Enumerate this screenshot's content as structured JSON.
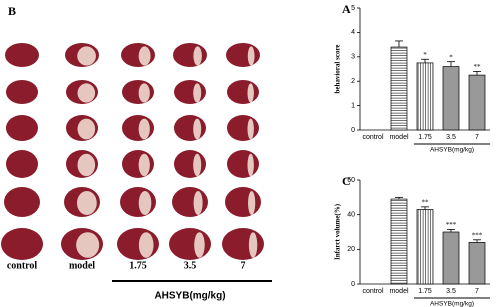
{
  "panel_b": {
    "panel_label": "B",
    "columns": [
      "control",
      "model",
      "1.75",
      "3.5",
      "7"
    ],
    "group_label": "AHSYB(mg/kg)"
  },
  "chart_data": [
    {
      "type": "bar",
      "panel_label": "A",
      "y_label": "behavioral score",
      "categories": [
        "control",
        "model",
        "1.75",
        "3.5",
        "7"
      ],
      "values": [
        0,
        3.4,
        2.75,
        2.6,
        2.25
      ],
      "errors": [
        0,
        0.25,
        0.15,
        0.2,
        0.15
      ],
      "annotations": [
        null,
        null,
        "*",
        "*",
        "**"
      ],
      "patterns": [
        "solid",
        "hlines",
        "vlines",
        "solid",
        "solid"
      ],
      "color": "#999999",
      "group_label": "AHSYB(mg/kg)",
      "ylim": [
        0,
        5
      ],
      "yticks": [
        0,
        1,
        2,
        3,
        4,
        5
      ]
    },
    {
      "type": "bar",
      "panel_label": "C",
      "y_label": "Infarct volume(%)",
      "categories": [
        "control",
        "model",
        "1.75",
        "3.5",
        "7"
      ],
      "values": [
        0,
        49,
        43,
        30,
        24
      ],
      "errors": [
        0,
        1,
        1.5,
        1.5,
        1.5
      ],
      "annotations": [
        null,
        null,
        "**",
        "***",
        "***"
      ],
      "patterns": [
        "solid",
        "hlines",
        "vlines",
        "solid",
        "solid"
      ],
      "color": "#999999",
      "group_label": "AHSYB(mg/kg)",
      "ylim": [
        0,
        60
      ],
      "yticks": [
        0,
        20,
        40,
        60
      ]
    }
  ]
}
